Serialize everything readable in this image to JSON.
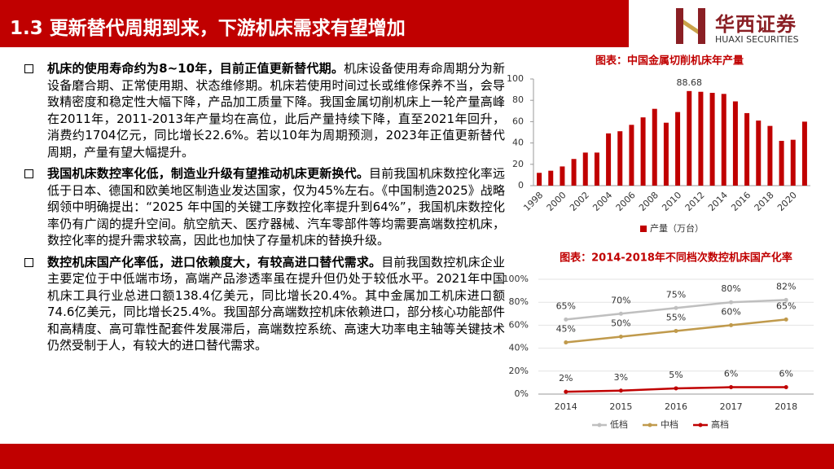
{
  "header": {
    "title": "1.3 更新替代周期到来，下游机床需求有望增加"
  },
  "logo": {
    "name": "华西证券",
    "name_en": "HUAXI SECURITIES"
  },
  "bullets": [
    {
      "bold": "机床的使用寿命约为8~10年，目前正值更新替代期。",
      "text": "机床设备使用寿命周期分为新设备磨合期、正常使用期、状态维修期。机床若使用时间过长或维修保养不当，会导致精密度和稳定性大幅下降，产品加工质量下降。我国金属切削机床上一轮产量高峰在2011年，2011-2013年产量均在高位，此后产量持续下降，直至2021年回升，消费约1704亿元，同比增长22.6%。若以10年为周期预测，2023年正值更新替代周期，产量有望大幅提升。"
    },
    {
      "bold": "我国机床数控率化低，制造业升级有望推动机床更新换代。",
      "text": "目前我国机床数控化率远低于日本、德国和欧美地区制造业发达国家，仅为45%左右。《中国制造2025》战略纲领中明确提出：“2025 年中国的关键工序数控化率提升到64%”，我国机床数控化率仍有广阔的提升空间。航空航天、医疗器械、汽车零部件等均需要高端数控机床，数控化率的提升需求较高，因此也加快了存量机床的替换升级。"
    },
    {
      "bold": "数控机床国产化率低，进口依赖度大，有较高进口替代需求。",
      "text": "目前我国数控机床企业主要定位于中低端市场，高端产品渗透率虽在提升但仍处于较低水平。2021年中国机床工具行业总进口额138.4亿美元，同比增长20.4%。其中金属加工机床进口额74.6亿美元，同比增长25.4%。我国部分高端数控机床依赖进口，部分核心功能部件和高精度、高可靠性配套件发展滞后，高端数控系统、高速大功率电主轴等关键技术仍然受制于人，有较大的进口替代需求。"
    }
  ],
  "chart_data": [
    {
      "type": "bar",
      "title": "图表：中国金属切削机床年产量",
      "categories": [
        "1998",
        null,
        "2000",
        null,
        "2002",
        null,
        "2004",
        null,
        "2006",
        null,
        "2008",
        null,
        "2010",
        null,
        "2012",
        null,
        "2014",
        null,
        "2016",
        null,
        "2018",
        null,
        "2020",
        null
      ],
      "series": [
        {
          "name": "产量（万台）",
          "color": "#c00000",
          "values": [
            12,
            14,
            18,
            25,
            31,
            31,
            49,
            51,
            57,
            64,
            72,
            59,
            69,
            88.68,
            88,
            87,
            86,
            79,
            68,
            61,
            56,
            42,
            43,
            60
          ],
          "value_labels": [
            null,
            null,
            null,
            null,
            null,
            null,
            null,
            null,
            null,
            null,
            null,
            null,
            null,
            "88.68",
            null,
            null,
            null,
            null,
            null,
            null,
            null,
            null,
            null,
            null
          ]
        }
      ],
      "ylim": [
        0,
        100
      ],
      "yticks": [
        0,
        20,
        40,
        60,
        80,
        100
      ],
      "grid": false
    },
    {
      "type": "line",
      "title": "图表：2014-2018年不同档次数控机床国产化率",
      "categories": [
        "2014",
        "2015",
        "2016",
        "2017",
        "2018"
      ],
      "series": [
        {
          "name": "低档",
          "color": "#bfbfbf",
          "values": [
            65,
            70,
            75,
            80,
            82
          ],
          "value_labels": [
            "65%",
            "70%",
            "75%",
            "80%",
            "82%"
          ]
        },
        {
          "name": "中档",
          "color": "#c09a4c",
          "values": [
            45,
            50,
            55,
            60,
            65
          ],
          "value_labels": [
            "45%",
            "50%",
            "55%",
            "60%",
            "65%"
          ]
        },
        {
          "name": "高档",
          "color": "#c00000",
          "values": [
            2,
            3,
            5,
            6,
            6
          ],
          "value_labels": [
            "2%",
            "3%",
            "5%",
            "6%",
            "6%"
          ]
        }
      ],
      "ylim": [
        0,
        100
      ],
      "yticks": [
        {
          "value": 0,
          "label": "0%"
        },
        {
          "value": 20,
          "label": "20%"
        },
        {
          "value": 40,
          "label": "40%"
        },
        {
          "value": 60,
          "label": "60%"
        },
        {
          "value": 80,
          "label": "80%"
        },
        {
          "value": 100,
          "label": "100%"
        }
      ],
      "grid": true
    }
  ]
}
